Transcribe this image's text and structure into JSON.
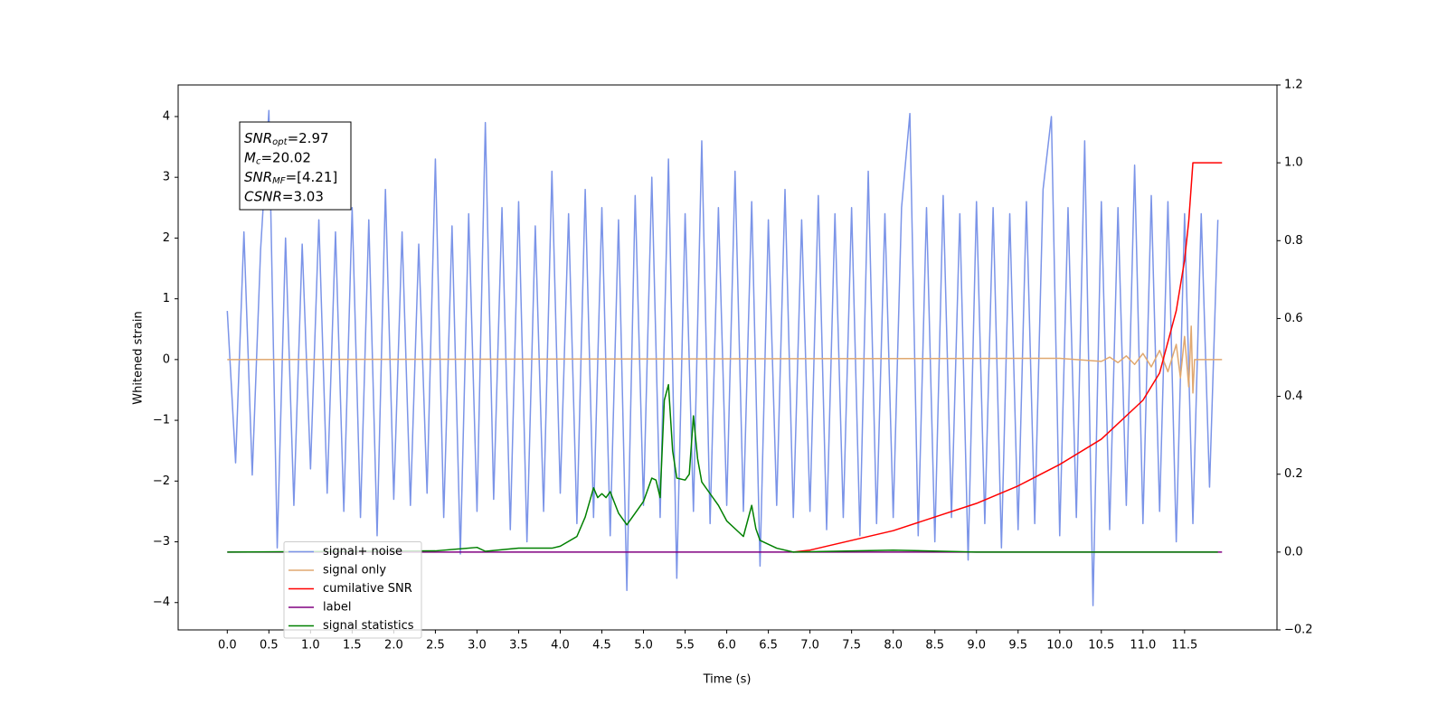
{
  "chart_data": {
    "type": "line",
    "xlabel": "Time (s)",
    "ylabel": "Whitened strain",
    "xlim": [
      -0.59,
      12.61
    ],
    "ylim": [
      -4.45,
      4.52
    ],
    "y2lim": [
      -0.2,
      1.2
    ],
    "xticks": [
      {
        "value": 0,
        "label": "0.0"
      },
      0.5,
      {
        "value": 1,
        "label": "1.0"
      },
      1.5,
      {
        "value": 2,
        "label": "2.0"
      },
      2.5,
      {
        "value": 3,
        "label": "3.0"
      },
      3.5,
      {
        "value": 4,
        "label": "4.0"
      },
      4.5,
      {
        "value": 5,
        "label": "5.0"
      },
      5.5,
      {
        "value": 6,
        "label": "6.0"
      },
      6.5,
      {
        "value": 7,
        "label": "7.0"
      },
      7.5,
      {
        "value": 8,
        "label": "8.0"
      },
      8.5,
      {
        "value": 9,
        "label": "9.0"
      },
      9.5,
      {
        "value": 10,
        "label": "10.0"
      },
      10.5,
      {
        "value": 11,
        "label": "11.0"
      },
      11.5
    ],
    "yticks": [
      {
        "value": -4,
        "label": "−4"
      },
      {
        "value": -3,
        "label": "−3"
      },
      {
        "value": -2,
        "label": "−2"
      },
      {
        "value": -1,
        "label": "−1"
      },
      0,
      1,
      2,
      3,
      4
    ],
    "y2ticks": [
      {
        "value": -0.2,
        "label": "−0.2"
      },
      {
        "value": 0,
        "label": "0.0"
      },
      0.2,
      0.4,
      0.6,
      0.8,
      {
        "value": 1,
        "label": "1.0"
      },
      1.2
    ],
    "legend": "lower left",
    "annotation": [
      {
        "main": "SNR",
        "sub": "opt",
        "rest": "=2.97"
      },
      {
        "main": "M",
        "sub": "c",
        "rest": "=20.02"
      },
      {
        "main": "SNR",
        "sub": "MF",
        "rest": "=[4.21]"
      },
      {
        "main": "CSNR",
        "rest": "=3.03"
      }
    ],
    "series": [
      {
        "name": "signal+ noise",
        "color": "#7b94e8",
        "x": [
          0,
          0.1,
          0.2,
          0.3,
          0.4,
          0.5,
          0.6,
          0.7,
          0.8,
          0.9,
          1,
          1.1,
          1.2,
          1.3,
          1.4,
          1.5,
          1.6,
          1.7,
          1.8,
          1.9,
          2,
          2.1,
          2.2,
          2.3,
          2.4,
          2.5,
          2.6,
          2.7,
          2.8,
          2.9,
          3,
          3.1,
          3.2,
          3.3,
          3.4,
          3.5,
          3.6,
          3.7,
          3.8,
          3.9,
          4,
          4.1,
          4.2,
          4.3,
          4.4,
          4.5,
          4.6,
          4.7,
          4.8,
          4.9,
          5,
          5.1,
          5.2,
          5.3,
          5.4,
          5.5,
          5.6,
          5.7,
          5.8,
          5.9,
          6,
          6.1,
          6.2,
          6.3,
          6.4,
          6.5,
          6.6,
          6.7,
          6.8,
          6.9,
          7,
          7.1,
          7.2,
          7.3,
          7.4,
          7.5,
          7.6,
          7.7,
          7.8,
          7.9,
          8,
          8.1,
          8.2,
          8.3,
          8.4,
          8.5,
          8.6,
          8.7,
          8.8,
          8.9,
          9,
          9.1,
          9.2,
          9.3,
          9.4,
          9.5,
          9.6,
          9.7,
          9.8,
          9.9,
          10,
          10.1,
          10.2,
          10.3,
          10.4,
          10.5,
          10.6,
          10.7,
          10.8,
          10.9,
          11,
          11.1,
          11.2,
          11.3,
          11.4,
          11.5,
          11.6,
          11.7,
          11.8,
          11.9
        ],
        "values": [
          0.8,
          -1.7,
          2.1,
          -1.9,
          1.8,
          4.1,
          -3.1,
          2.0,
          -2.4,
          1.9,
          -1.8,
          2.3,
          -2.2,
          2.1,
          -2.5,
          2.5,
          -2.6,
          2.3,
          -2.9,
          2.8,
          -2.3,
          2.1,
          -2.4,
          1.9,
          -2.2,
          3.3,
          -2.6,
          2.2,
          -3.2,
          2.4,
          -2.5,
          3.9,
          -2.3,
          2.5,
          -2.8,
          2.6,
          -3.0,
          2.2,
          -2.5,
          3.1,
          -2.2,
          2.4,
          -2.7,
          2.8,
          -2.6,
          2.5,
          -2.9,
          2.3,
          -3.8,
          2.7,
          -2.4,
          3.0,
          -2.6,
          3.3,
          -3.6,
          2.4,
          -2.5,
          3.6,
          -2.7,
          2.5,
          -2.4,
          3.1,
          -2.5,
          2.6,
          -3.4,
          2.3,
          -2.4,
          2.8,
          -2.6,
          2.3,
          -2.5,
          2.7,
          -2.8,
          2.4,
          -2.6,
          2.5,
          -2.9,
          3.1,
          -2.7,
          2.4,
          -2.6,
          2.5,
          4.05,
          -2.9,
          2.5,
          -3.0,
          2.7,
          -2.6,
          2.4,
          -3.3,
          2.6,
          -2.7,
          2.5,
          -3.1,
          2.4,
          -2.8,
          2.6,
          -2.7,
          2.8,
          4.0,
          -2.9,
          2.5,
          -2.6,
          3.6,
          -4.05,
          2.6,
          -2.8,
          2.5,
          -2.4,
          3.2,
          -2.7,
          2.7,
          -2.5,
          2.6,
          -3.0,
          2.4,
          -2.7,
          2.4,
          -2.1,
          2.3
        ]
      },
      {
        "name": "signal only",
        "color": "#e0a870",
        "x": [
          0,
          10.0,
          10.5,
          10.6,
          10.7,
          10.8,
          10.9,
          11.0,
          11.1,
          11.2,
          11.3,
          11.4,
          11.45,
          11.5,
          11.55,
          11.58,
          11.6,
          11.62,
          11.95
        ],
        "values": [
          0,
          0.02,
          -0.03,
          0.04,
          -0.05,
          0.06,
          -0.08,
          0.1,
          -0.12,
          0.15,
          -0.2,
          0.25,
          -0.3,
          0.38,
          -0.45,
          0.55,
          -0.55,
          0,
          0
        ]
      },
      {
        "name": "cumilative SNR",
        "color": "#ff0000",
        "axis": "y2",
        "x": [
          6.8,
          7.0,
          7.5,
          8.0,
          8.5,
          9.0,
          9.5,
          10.0,
          10.5,
          11.0,
          11.2,
          11.3,
          11.4,
          11.5,
          11.55,
          11.6,
          11.95
        ],
        "values": [
          0,
          0.005,
          0.03,
          0.055,
          0.09,
          0.125,
          0.17,
          0.225,
          0.29,
          0.39,
          0.46,
          0.54,
          0.62,
          0.75,
          0.85,
          1.0,
          1.0
        ]
      },
      {
        "name": "label",
        "color": "#800080",
        "axis": "y2",
        "x": [
          0,
          11.95
        ],
        "values": [
          0,
          0
        ]
      },
      {
        "name": "signal statistics",
        "color": "#008000",
        "axis": "y2",
        "x": [
          0,
          2.5,
          3.0,
          3.1,
          3.5,
          3.9,
          4.0,
          4.2,
          4.3,
          4.4,
          4.45,
          4.5,
          4.55,
          4.6,
          4.7,
          4.8,
          4.9,
          5.0,
          5.1,
          5.15,
          5.2,
          5.25,
          5.3,
          5.35,
          5.4,
          5.5,
          5.55,
          5.6,
          5.65,
          5.7,
          5.8,
          5.9,
          6.0,
          6.1,
          6.2,
          6.3,
          6.35,
          6.4,
          6.6,
          6.8,
          8.0,
          9.0,
          11.9
        ],
        "values": [
          0,
          0.003,
          0.012,
          0.002,
          0.01,
          0.01,
          0.015,
          0.04,
          0.09,
          0.165,
          0.14,
          0.15,
          0.14,
          0.155,
          0.1,
          0.07,
          0.1,
          0.13,
          0.19,
          0.185,
          0.14,
          0.39,
          0.43,
          0.26,
          0.19,
          0.185,
          0.2,
          0.35,
          0.24,
          0.18,
          0.15,
          0.12,
          0.08,
          0.06,
          0.04,
          0.12,
          0.06,
          0.03,
          0.01,
          0,
          0.005,
          0,
          0
        ]
      }
    ]
  }
}
